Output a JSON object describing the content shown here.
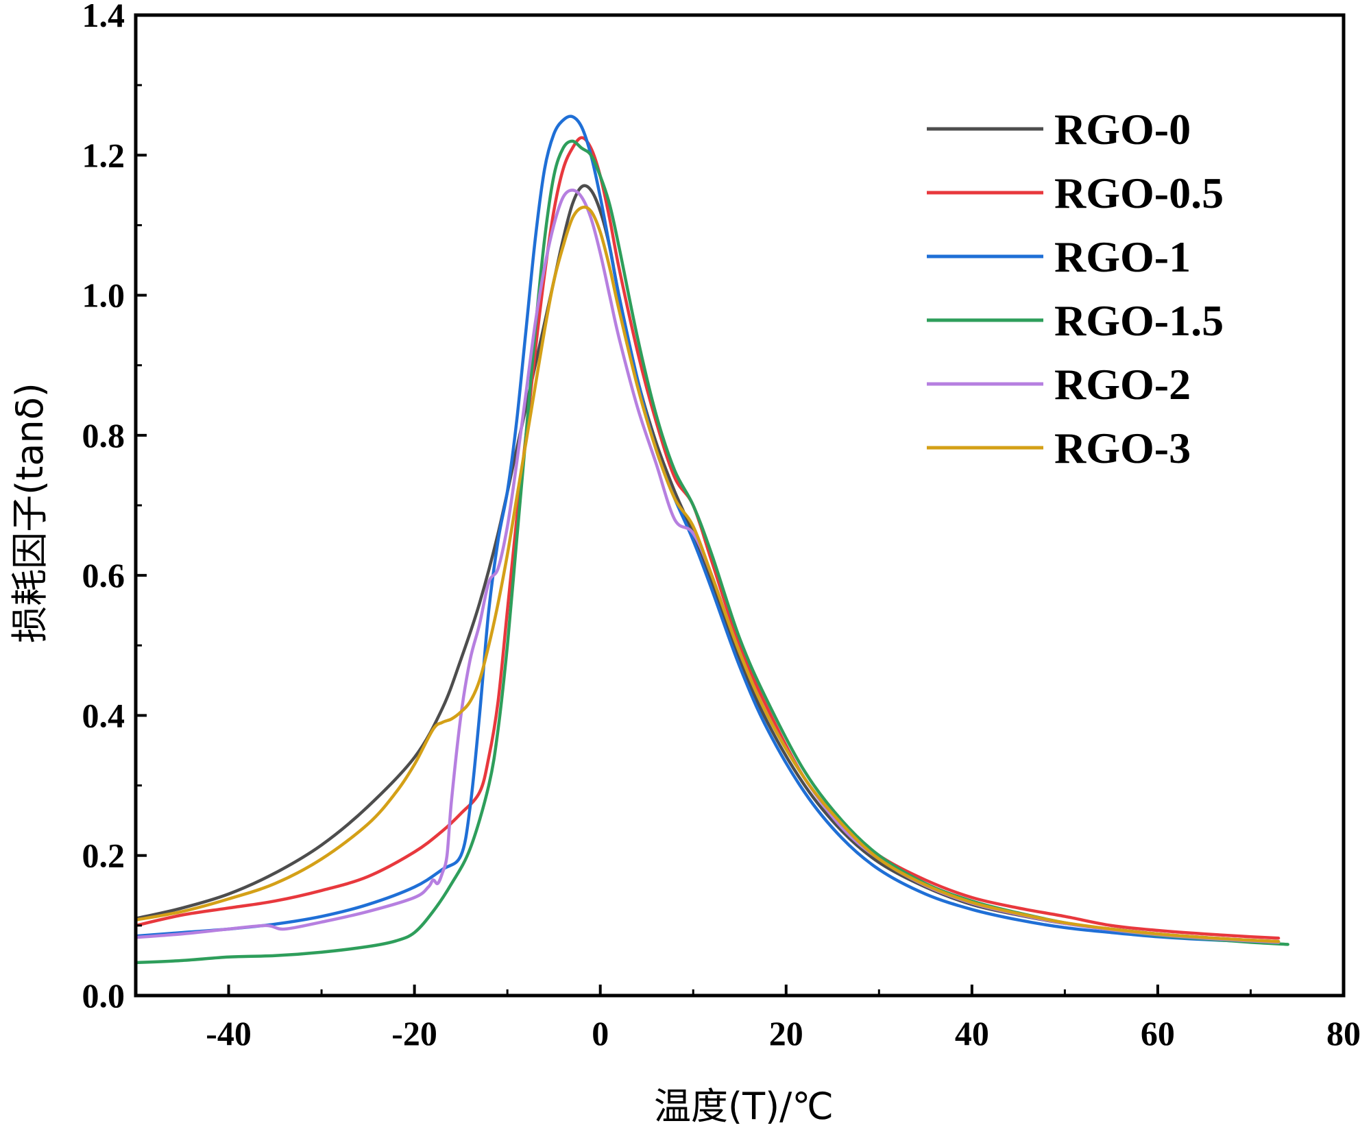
{
  "chart_data": {
    "type": "line",
    "title": "",
    "xlabel": "温度(T)/℃",
    "ylabel": "损耗因子(tanδ)",
    "xlim": [
      -50,
      80
    ],
    "ylim": [
      0.0,
      1.4
    ],
    "x_ticks": [
      "-40",
      "-20",
      "0",
      "20",
      "40",
      "60",
      "80"
    ],
    "x_tick_values": [
      -40,
      -20,
      0,
      20,
      40,
      60,
      80
    ],
    "y_ticks": [
      "0.0",
      "0.2",
      "0.4",
      "0.6",
      "0.8",
      "1.0",
      "1.2",
      "1.4"
    ],
    "y_tick_values": [
      0.0,
      0.2,
      0.4,
      0.6,
      0.8,
      1.0,
      1.2,
      1.4
    ],
    "grid": false,
    "legend_position": "top-right",
    "series": [
      {
        "name": "RGO-0",
        "color": "#4d4d4d",
        "points": [
          [
            -50,
            0.11
          ],
          [
            -45,
            0.125
          ],
          [
            -40,
            0.145
          ],
          [
            -35,
            0.175
          ],
          [
            -30,
            0.215
          ],
          [
            -25,
            0.27
          ],
          [
            -20,
            0.34
          ],
          [
            -17,
            0.41
          ],
          [
            -15,
            0.48
          ],
          [
            -13,
            0.56
          ],
          [
            -11,
            0.66
          ],
          [
            -9,
            0.78
          ],
          [
            -7,
            0.9
          ],
          [
            -5,
            1.02
          ],
          [
            -4,
            1.08
          ],
          [
            -3,
            1.13
          ],
          [
            -2,
            1.155
          ],
          [
            -1,
            1.15
          ],
          [
            0,
            1.12
          ],
          [
            1,
            1.07
          ],
          [
            2,
            1.0
          ],
          [
            4,
            0.88
          ],
          [
            6,
            0.79
          ],
          [
            8,
            0.72
          ],
          [
            10,
            0.66
          ],
          [
            12,
            0.59
          ],
          [
            15,
            0.48
          ],
          [
            18,
            0.39
          ],
          [
            22,
            0.3
          ],
          [
            26,
            0.235
          ],
          [
            30,
            0.19
          ],
          [
            35,
            0.155
          ],
          [
            40,
            0.13
          ],
          [
            45,
            0.115
          ],
          [
            50,
            0.103
          ],
          [
            55,
            0.095
          ],
          [
            60,
            0.088
          ],
          [
            65,
            0.083
          ],
          [
            70,
            0.079
          ],
          [
            73,
            0.077
          ]
        ]
      },
      {
        "name": "RGO-0.5",
        "color": "#e8383d",
        "points": [
          [
            -50,
            0.1
          ],
          [
            -45,
            0.115
          ],
          [
            -40,
            0.125
          ],
          [
            -35,
            0.135
          ],
          [
            -30,
            0.15
          ],
          [
            -25,
            0.17
          ],
          [
            -20,
            0.205
          ],
          [
            -17,
            0.235
          ],
          [
            -15,
            0.26
          ],
          [
            -13,
            0.29
          ],
          [
            -12,
            0.34
          ],
          [
            -11,
            0.42
          ],
          [
            -10,
            0.55
          ],
          [
            -9,
            0.68
          ],
          [
            -8,
            0.8
          ],
          [
            -7,
            0.92
          ],
          [
            -6,
            1.03
          ],
          [
            -5,
            1.12
          ],
          [
            -4,
            1.18
          ],
          [
            -3,
            1.21
          ],
          [
            -2,
            1.225
          ],
          [
            -1,
            1.21
          ],
          [
            0,
            1.17
          ],
          [
            1,
            1.11
          ],
          [
            2,
            1.04
          ],
          [
            4,
            0.92
          ],
          [
            6,
            0.82
          ],
          [
            8,
            0.74
          ],
          [
            10,
            0.7
          ],
          [
            12,
            0.62
          ],
          [
            15,
            0.5
          ],
          [
            18,
            0.41
          ],
          [
            22,
            0.31
          ],
          [
            26,
            0.245
          ],
          [
            30,
            0.2
          ],
          [
            35,
            0.165
          ],
          [
            40,
            0.14
          ],
          [
            45,
            0.125
          ],
          [
            50,
            0.113
          ],
          [
            55,
            0.1
          ],
          [
            60,
            0.093
          ],
          [
            65,
            0.088
          ],
          [
            70,
            0.084
          ],
          [
            73,
            0.082
          ]
        ]
      },
      {
        "name": "RGO-1",
        "color": "#1f6fd6",
        "points": [
          [
            -50,
            0.085
          ],
          [
            -45,
            0.09
          ],
          [
            -40,
            0.095
          ],
          [
            -35,
            0.102
          ],
          [
            -30,
            0.113
          ],
          [
            -25,
            0.13
          ],
          [
            -20,
            0.155
          ],
          [
            -17,
            0.18
          ],
          [
            -15,
            0.2
          ],
          [
            -14,
            0.27
          ],
          [
            -13,
            0.4
          ],
          [
            -12,
            0.55
          ],
          [
            -11,
            0.65
          ],
          [
            -10,
            0.72
          ],
          [
            -9,
            0.82
          ],
          [
            -8,
            0.95
          ],
          [
            -7,
            1.08
          ],
          [
            -6,
            1.18
          ],
          [
            -5,
            1.23
          ],
          [
            -4,
            1.25
          ],
          [
            -3,
            1.255
          ],
          [
            -2,
            1.24
          ],
          [
            -1,
            1.2
          ],
          [
            0,
            1.14
          ],
          [
            1,
            1.07
          ],
          [
            2,
            1.0
          ],
          [
            4,
            0.88
          ],
          [
            6,
            0.78
          ],
          [
            8,
            0.71
          ],
          [
            10,
            0.65
          ],
          [
            12,
            0.58
          ],
          [
            15,
            0.47
          ],
          [
            18,
            0.38
          ],
          [
            22,
            0.29
          ],
          [
            26,
            0.225
          ],
          [
            30,
            0.18
          ],
          [
            35,
            0.145
          ],
          [
            40,
            0.123
          ],
          [
            45,
            0.108
          ],
          [
            50,
            0.097
          ],
          [
            55,
            0.09
          ],
          [
            60,
            0.084
          ],
          [
            65,
            0.08
          ],
          [
            70,
            0.077
          ],
          [
            73,
            0.075
          ]
        ]
      },
      {
        "name": "RGO-1.5",
        "color": "#2e9e5b",
        "points": [
          [
            -50,
            0.047
          ],
          [
            -45,
            0.05
          ],
          [
            -40,
            0.055
          ],
          [
            -35,
            0.057
          ],
          [
            -30,
            0.062
          ],
          [
            -25,
            0.07
          ],
          [
            -22,
            0.078
          ],
          [
            -20,
            0.09
          ],
          [
            -18,
            0.12
          ],
          [
            -16,
            0.16
          ],
          [
            -14,
            0.21
          ],
          [
            -12,
            0.3
          ],
          [
            -11,
            0.38
          ],
          [
            -10,
            0.5
          ],
          [
            -9,
            0.65
          ],
          [
            -8,
            0.8
          ],
          [
            -7,
            0.95
          ],
          [
            -6,
            1.08
          ],
          [
            -5,
            1.17
          ],
          [
            -4,
            1.21
          ],
          [
            -3,
            1.22
          ],
          [
            -2,
            1.21
          ],
          [
            -1,
            1.2
          ],
          [
            0,
            1.17
          ],
          [
            1,
            1.13
          ],
          [
            2,
            1.07
          ],
          [
            4,
            0.94
          ],
          [
            6,
            0.83
          ],
          [
            8,
            0.75
          ],
          [
            10,
            0.7
          ],
          [
            12,
            0.63
          ],
          [
            15,
            0.51
          ],
          [
            18,
            0.42
          ],
          [
            22,
            0.32
          ],
          [
            26,
            0.25
          ],
          [
            30,
            0.2
          ],
          [
            35,
            0.16
          ],
          [
            40,
            0.135
          ],
          [
            45,
            0.118
          ],
          [
            50,
            0.104
          ],
          [
            55,
            0.094
          ],
          [
            60,
            0.086
          ],
          [
            65,
            0.081
          ],
          [
            70,
            0.076
          ],
          [
            74,
            0.073
          ]
        ]
      },
      {
        "name": "RGO-2",
        "color": "#b67fe0",
        "points": [
          [
            -50,
            0.083
          ],
          [
            -45,
            0.088
          ],
          [
            -40,
            0.095
          ],
          [
            -36,
            0.1
          ],
          [
            -34,
            0.095
          ],
          [
            -30,
            0.105
          ],
          [
            -25,
            0.12
          ],
          [
            -20,
            0.14
          ],
          [
            -18.5,
            0.155
          ],
          [
            -18,
            0.165
          ],
          [
            -17.5,
            0.16
          ],
          [
            -17,
            0.175
          ],
          [
            -16.5,
            0.2
          ],
          [
            -16,
            0.28
          ],
          [
            -15,
            0.4
          ],
          [
            -14,
            0.48
          ],
          [
            -13,
            0.53
          ],
          [
            -12,
            0.59
          ],
          [
            -11,
            0.61
          ],
          [
            -10,
            0.67
          ],
          [
            -9,
            0.76
          ],
          [
            -8,
            0.86
          ],
          [
            -7,
            0.96
          ],
          [
            -6,
            1.04
          ],
          [
            -5,
            1.1
          ],
          [
            -4,
            1.14
          ],
          [
            -3,
            1.15
          ],
          [
            -2,
            1.14
          ],
          [
            -1,
            1.11
          ],
          [
            0,
            1.06
          ],
          [
            1,
            1.0
          ],
          [
            2,
            0.94
          ],
          [
            4,
            0.84
          ],
          [
            6,
            0.76
          ],
          [
            8,
            0.68
          ],
          [
            10,
            0.66
          ],
          [
            12,
            0.6
          ],
          [
            15,
            0.49
          ],
          [
            18,
            0.4
          ],
          [
            22,
            0.31
          ],
          [
            26,
            0.24
          ],
          [
            30,
            0.195
          ],
          [
            35,
            0.157
          ],
          [
            40,
            0.132
          ],
          [
            45,
            0.116
          ],
          [
            50,
            0.103
          ],
          [
            55,
            0.094
          ],
          [
            60,
            0.087
          ],
          [
            65,
            0.082
          ],
          [
            70,
            0.078
          ],
          [
            73,
            0.076
          ]
        ]
      },
      {
        "name": "RGO-3",
        "color": "#d4a017",
        "points": [
          [
            -50,
            0.108
          ],
          [
            -45,
            0.12
          ],
          [
            -40,
            0.138
          ],
          [
            -35,
            0.16
          ],
          [
            -30,
            0.195
          ],
          [
            -25,
            0.245
          ],
          [
            -22,
            0.29
          ],
          [
            -20,
            0.33
          ],
          [
            -18,
            0.38
          ],
          [
            -17,
            0.39
          ],
          [
            -16,
            0.395
          ],
          [
            -15,
            0.405
          ],
          [
            -14,
            0.42
          ],
          [
            -13,
            0.45
          ],
          [
            -12,
            0.5
          ],
          [
            -11,
            0.56
          ],
          [
            -10,
            0.63
          ],
          [
            -9,
            0.71
          ],
          [
            -8,
            0.79
          ],
          [
            -7,
            0.87
          ],
          [
            -6,
            0.95
          ],
          [
            -5,
            1.02
          ],
          [
            -4,
            1.07
          ],
          [
            -3,
            1.11
          ],
          [
            -2,
            1.125
          ],
          [
            -1,
            1.12
          ],
          [
            0,
            1.09
          ],
          [
            1,
            1.04
          ],
          [
            2,
            0.98
          ],
          [
            4,
            0.87
          ],
          [
            6,
            0.78
          ],
          [
            8,
            0.71
          ],
          [
            10,
            0.67
          ],
          [
            12,
            0.6
          ],
          [
            15,
            0.49
          ],
          [
            18,
            0.4
          ],
          [
            22,
            0.31
          ],
          [
            26,
            0.245
          ],
          [
            30,
            0.195
          ],
          [
            35,
            0.158
          ],
          [
            40,
            0.133
          ],
          [
            45,
            0.117
          ],
          [
            50,
            0.104
          ],
          [
            55,
            0.095
          ],
          [
            60,
            0.088
          ],
          [
            65,
            0.083
          ],
          [
            70,
            0.079
          ],
          [
            73,
            0.077
          ]
        ]
      }
    ]
  }
}
